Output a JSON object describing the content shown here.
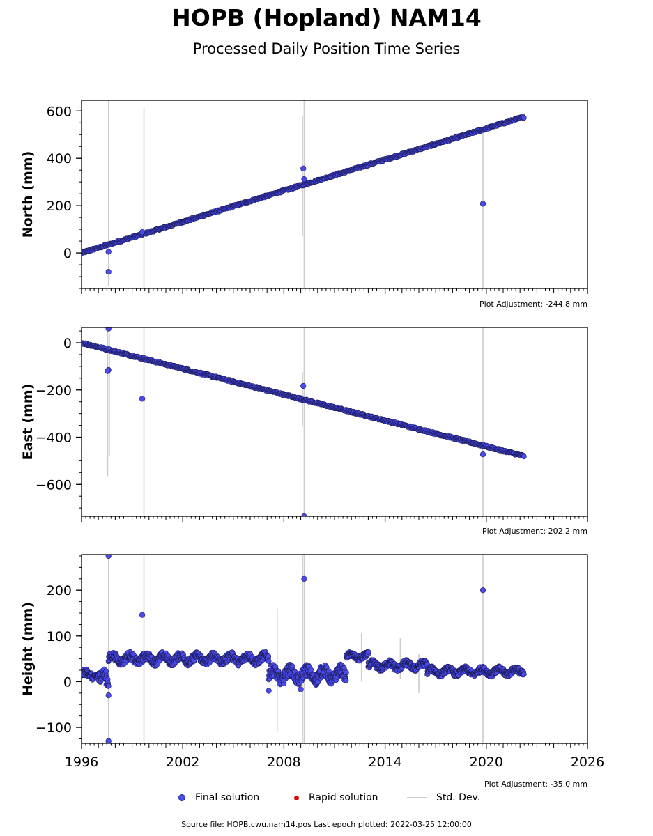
{
  "title": "HOPB (Hopland) NAM14",
  "subtitle": "Processed Daily Position Time Series",
  "legend": {
    "final": "Final solution",
    "rapid": "Rapid solution",
    "std": "Std. Dev."
  },
  "colors": {
    "final": "#4b4bf0",
    "final_edge": "#1a1a55",
    "rapid": "#e00000",
    "std": "#cccccc"
  },
  "footer": "Source file: HOPB.cwu.nam14.pos  Last epoch plotted: 2022-03-25 12:00:00",
  "chart_data": [
    {
      "type": "scatter",
      "ylabel": "North (mm)",
      "adjustment": "Plot Adjustment: -244.8 mm",
      "xlim": [
        1996,
        2026
      ],
      "ylim": [
        -150,
        645
      ],
      "yticks": [
        0,
        200,
        400,
        600
      ],
      "ytick_labels": [
        "0",
        "200",
        "400",
        "600"
      ],
      "trend": {
        "x": [
          1996.0,
          2022.23
        ],
        "y": [
          0,
          575
        ]
      },
      "outliers": [
        {
          "x": 1997.6,
          "y": 5
        },
        {
          "x": 1997.6,
          "y": -80
        },
        {
          "x": 1999.6,
          "y": 88
        },
        {
          "x": 2009.15,
          "y": 357
        },
        {
          "x": 2009.2,
          "y": 312
        },
        {
          "x": 2019.8,
          "y": 208
        }
      ],
      "stddev_spikes": [
        {
          "x": 1997.6,
          "y1": -140,
          "y2": 645
        },
        {
          "x": 1999.7,
          "y1": -150,
          "y2": 612
        },
        {
          "x": 2009.1,
          "y1": 70,
          "y2": 580
        },
        {
          "x": 2009.2,
          "y1": -150,
          "y2": 645
        },
        {
          "x": 2019.8,
          "y1": -150,
          "y2": 520
        }
      ]
    },
    {
      "type": "scatter",
      "ylabel": "East (mm)",
      "adjustment": "Plot Adjustment: 202.2 mm",
      "xlim": [
        1996,
        2026
      ],
      "ylim": [
        -735,
        65
      ],
      "yticks": [
        0,
        -200,
        -400,
        -600
      ],
      "ytick_labels": [
        "0",
        "−200",
        "−400",
        "−600"
      ],
      "trend": {
        "x": [
          1996.0,
          2022.23
        ],
        "y": [
          0,
          -480
        ]
      },
      "outliers": [
        {
          "x": 1997.6,
          "y": 60
        },
        {
          "x": 1997.6,
          "y": -115
        },
        {
          "x": 1997.55,
          "y": -120
        },
        {
          "x": 1999.6,
          "y": -237
        },
        {
          "x": 2009.15,
          "y": -183
        },
        {
          "x": 2009.2,
          "y": -735
        },
        {
          "x": 2019.8,
          "y": -473
        }
      ],
      "stddev_spikes": [
        {
          "x": 1997.55,
          "y1": -565,
          "y2": 65
        },
        {
          "x": 1997.65,
          "y1": -480,
          "y2": 40
        },
        {
          "x": 1999.7,
          "y1": -735,
          "y2": 65
        },
        {
          "x": 2009.1,
          "y1": -355,
          "y2": -125
        },
        {
          "x": 2009.2,
          "y1": -735,
          "y2": 65
        },
        {
          "x": 2019.8,
          "y1": -735,
          "y2": 65
        }
      ]
    },
    {
      "type": "scatter",
      "ylabel": "Height (mm)",
      "adjustment": "Plot Adjustment: -35.0 mm",
      "xlim": [
        1996,
        2026
      ],
      "ylim": [
        -135,
        278
      ],
      "yticks": [
        -100,
        0,
        100,
        200
      ],
      "ytick_labels": [
        "−100",
        "0",
        "100",
        "200"
      ],
      "xticks": [
        1996,
        2002,
        2008,
        2014,
        2020,
        2026
      ],
      "xtick_labels": [
        "1996",
        "2002",
        "2008",
        "2014",
        "2020",
        "2026"
      ],
      "segments": [
        {
          "x0": 1996.0,
          "x1": 1997.0,
          "base": 15,
          "amp": 10
        },
        {
          "x0": 1997.0,
          "x1": 1997.6,
          "base": 5,
          "amp": 20
        },
        {
          "x0": 1997.6,
          "x1": 2007.1,
          "base": 50,
          "amp": 12
        },
        {
          "x0": 2007.1,
          "x1": 2011.7,
          "base": 15,
          "amp": 18
        },
        {
          "x0": 2011.7,
          "x1": 2013.0,
          "base": 55,
          "amp": 8
        },
        {
          "x0": 2013.0,
          "x1": 2016.5,
          "base": 35,
          "amp": 10
        },
        {
          "x0": 2016.5,
          "x1": 2022.23,
          "base": 22,
          "amp": 9
        }
      ],
      "outliers": [
        {
          "x": 1997.6,
          "y": 275
        },
        {
          "x": 1997.6,
          "y": -30
        },
        {
          "x": 1997.6,
          "y": -130
        },
        {
          "x": 1999.6,
          "y": 146
        },
        {
          "x": 2009.2,
          "y": 225
        },
        {
          "x": 2019.8,
          "y": 200
        },
        {
          "x": 2007.1,
          "y": -20
        },
        {
          "x": 2009.0,
          "y": -17
        }
      ],
      "stddev_spikes": [
        {
          "x": 1997.6,
          "y1": -135,
          "y2": 278
        },
        {
          "x": 1999.7,
          "y1": -135,
          "y2": 278
        },
        {
          "x": 2009.1,
          "y1": -135,
          "y2": 278
        },
        {
          "x": 2009.2,
          "y1": -135,
          "y2": 278
        },
        {
          "x": 2019.8,
          "y1": -135,
          "y2": 278
        },
        {
          "x": 2007.6,
          "y1": -110,
          "y2": 160
        },
        {
          "x": 2012.6,
          "y1": 0,
          "y2": 105
        },
        {
          "x": 2014.9,
          "y1": 5,
          "y2": 95
        },
        {
          "x": 2016.0,
          "y1": -25,
          "y2": 60
        }
      ]
    }
  ]
}
